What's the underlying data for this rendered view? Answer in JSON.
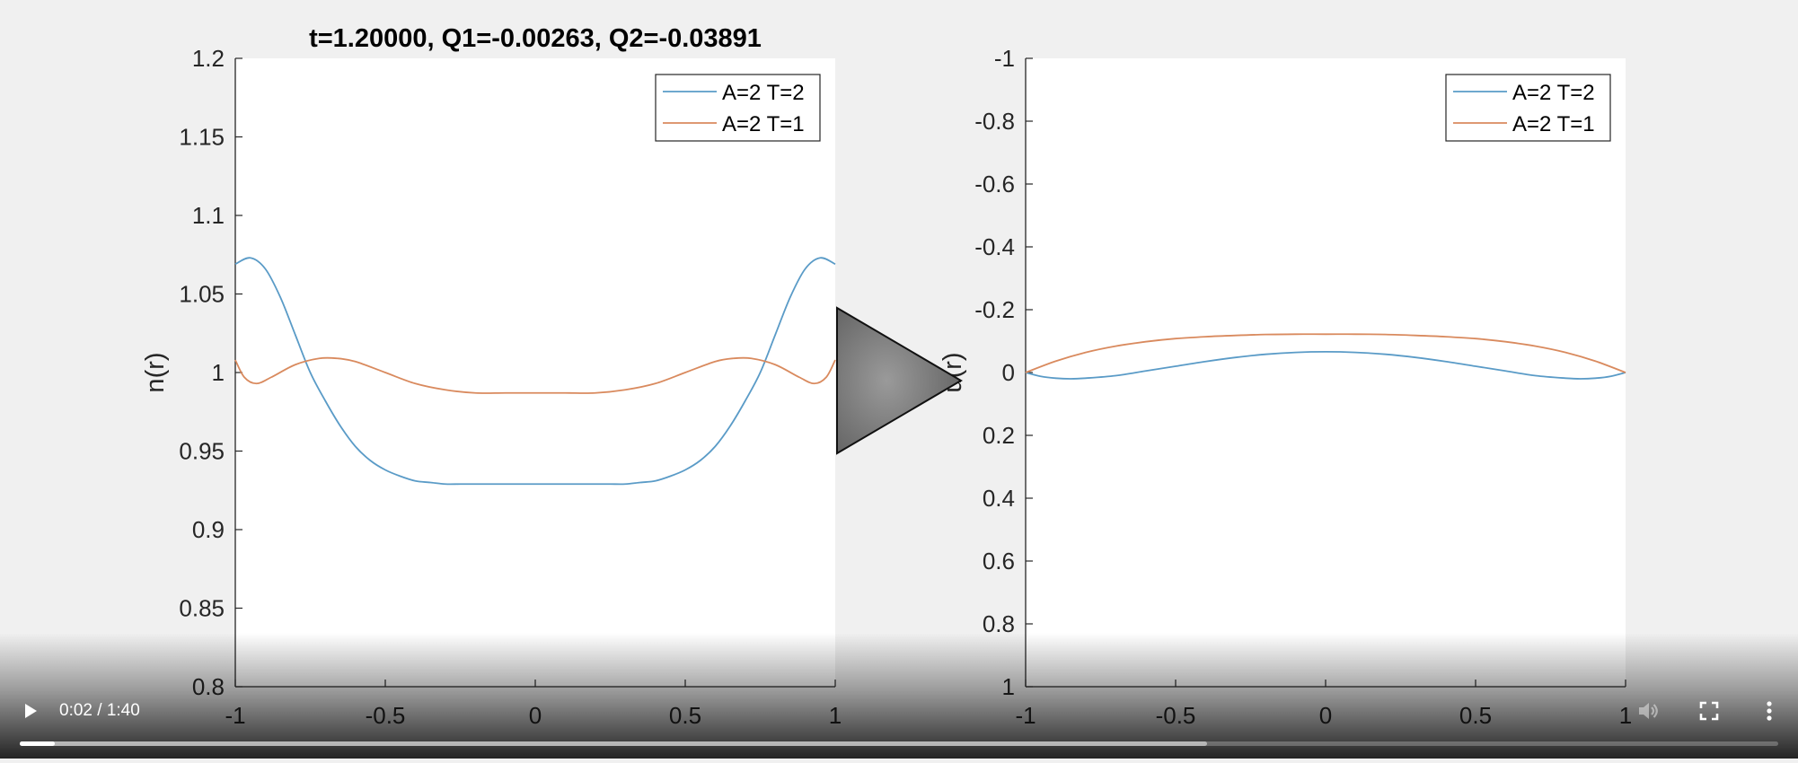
{
  "video": {
    "current_time": "0:02",
    "duration": "1:40",
    "progress": 0.02,
    "buffered": 0.675
  },
  "icons": {
    "big_play": "play-triangle-icon",
    "play": "play-icon",
    "volume": "volume-icon",
    "fullscreen": "fullscreen-icon",
    "more": "more-vert-icon"
  },
  "colors": {
    "series_blue": "#5a9bc7",
    "series_orange": "#d98a5e",
    "background": "#f0f0f0",
    "axes_bg": "#ffffff"
  },
  "chart_data": [
    {
      "type": "line",
      "title": "t=1.20000, Q1=-0.00263, Q2=-0.03891",
      "xlabel": "",
      "ylabel": "n(r)",
      "xlim": [
        -1,
        1
      ],
      "ylim": [
        0.8,
        1.2
      ],
      "xticks": [
        "-1",
        "-0.5",
        "0",
        "0.5",
        "1"
      ],
      "yticks": [
        "1.2",
        "1.15",
        "1.1",
        "1.05",
        "1",
        "0.95",
        "0.9",
        "0.85",
        "0.8"
      ],
      "legend_position": "top-right",
      "grid": false,
      "series": [
        {
          "name": "A=2 T=2",
          "x": [
            -1,
            -0.95,
            -0.9,
            -0.85,
            -0.8,
            -0.75,
            -0.7,
            -0.65,
            -0.6,
            -0.55,
            -0.5,
            -0.45,
            -0.4,
            -0.35,
            -0.3,
            -0.25,
            -0.2,
            -0.1,
            0,
            0.1,
            0.2,
            0.25,
            0.3,
            0.35,
            0.4,
            0.45,
            0.5,
            0.55,
            0.6,
            0.65,
            0.7,
            0.75,
            0.8,
            0.85,
            0.9,
            0.95,
            1
          ],
          "values": [
            1.069,
            1.073,
            1.066,
            1.048,
            1.024,
            1.0,
            0.982,
            0.966,
            0.953,
            0.944,
            0.938,
            0.934,
            0.931,
            0.93,
            0.929,
            0.929,
            0.929,
            0.929,
            0.929,
            0.929,
            0.929,
            0.929,
            0.929,
            0.93,
            0.931,
            0.934,
            0.938,
            0.944,
            0.953,
            0.966,
            0.982,
            1.0,
            1.024,
            1.048,
            1.066,
            1.073,
            1.069
          ]
        },
        {
          "name": "A=2 T=1",
          "x": [
            -1,
            -0.97,
            -0.93,
            -0.88,
            -0.8,
            -0.72,
            -0.66,
            -0.6,
            -0.5,
            -0.4,
            -0.3,
            -0.2,
            -0.1,
            0,
            0.1,
            0.2,
            0.3,
            0.4,
            0.5,
            0.6,
            0.66,
            0.72,
            0.8,
            0.88,
            0.93,
            0.97,
            1
          ],
          "values": [
            1.008,
            0.997,
            0.993,
            0.997,
            1.005,
            1.009,
            1.009,
            1.007,
            1.0,
            0.993,
            0.989,
            0.987,
            0.987,
            0.987,
            0.987,
            0.987,
            0.989,
            0.993,
            1.0,
            1.007,
            1.009,
            1.009,
            1.005,
            0.997,
            0.993,
            0.997,
            1.008
          ]
        }
      ]
    },
    {
      "type": "line",
      "title": "",
      "xlabel": "",
      "ylabel": "u(r)",
      "xlim": [
        -1,
        1
      ],
      "ylim": [
        -1,
        1
      ],
      "y_reversed": true,
      "xticks": [
        "-1",
        "-0.5",
        "0",
        "0.5",
        "1"
      ],
      "yticks": [
        "-1",
        "-0.8",
        "-0.6",
        "-0.4",
        "-0.2",
        "0",
        "0.2",
        "0.4",
        "0.6",
        "0.8",
        "1"
      ],
      "legend_position": "top-right",
      "grid": false,
      "series": [
        {
          "name": "A=2 T=2",
          "x": [
            -1,
            -0.95,
            -0.9,
            -0.85,
            -0.8,
            -0.7,
            -0.6,
            -0.5,
            -0.4,
            -0.3,
            -0.2,
            -0.1,
            0,
            0.1,
            0.2,
            0.3,
            0.4,
            0.5,
            0.6,
            0.7,
            0.8,
            0.85,
            0.9,
            0.95,
            1
          ],
          "values": [
            0.0,
            0.012,
            0.018,
            0.02,
            0.018,
            0.01,
            -0.005,
            -0.02,
            -0.035,
            -0.048,
            -0.058,
            -0.064,
            -0.066,
            -0.064,
            -0.058,
            -0.048,
            -0.035,
            -0.02,
            -0.005,
            0.01,
            0.018,
            0.02,
            0.018,
            0.012,
            0.0
          ]
        },
        {
          "name": "A=2 T=1",
          "x": [
            -1,
            -0.9,
            -0.8,
            -0.7,
            -0.6,
            -0.5,
            -0.4,
            -0.3,
            -0.2,
            -0.1,
            0,
            0.1,
            0.2,
            0.3,
            0.4,
            0.5,
            0.6,
            0.7,
            0.8,
            0.9,
            1
          ],
          "values": [
            0.0,
            -0.036,
            -0.064,
            -0.084,
            -0.098,
            -0.108,
            -0.114,
            -0.118,
            -0.121,
            -0.122,
            -0.122,
            -0.122,
            -0.121,
            -0.118,
            -0.114,
            -0.108,
            -0.098,
            -0.084,
            -0.064,
            -0.036,
            0.0
          ]
        }
      ]
    }
  ]
}
